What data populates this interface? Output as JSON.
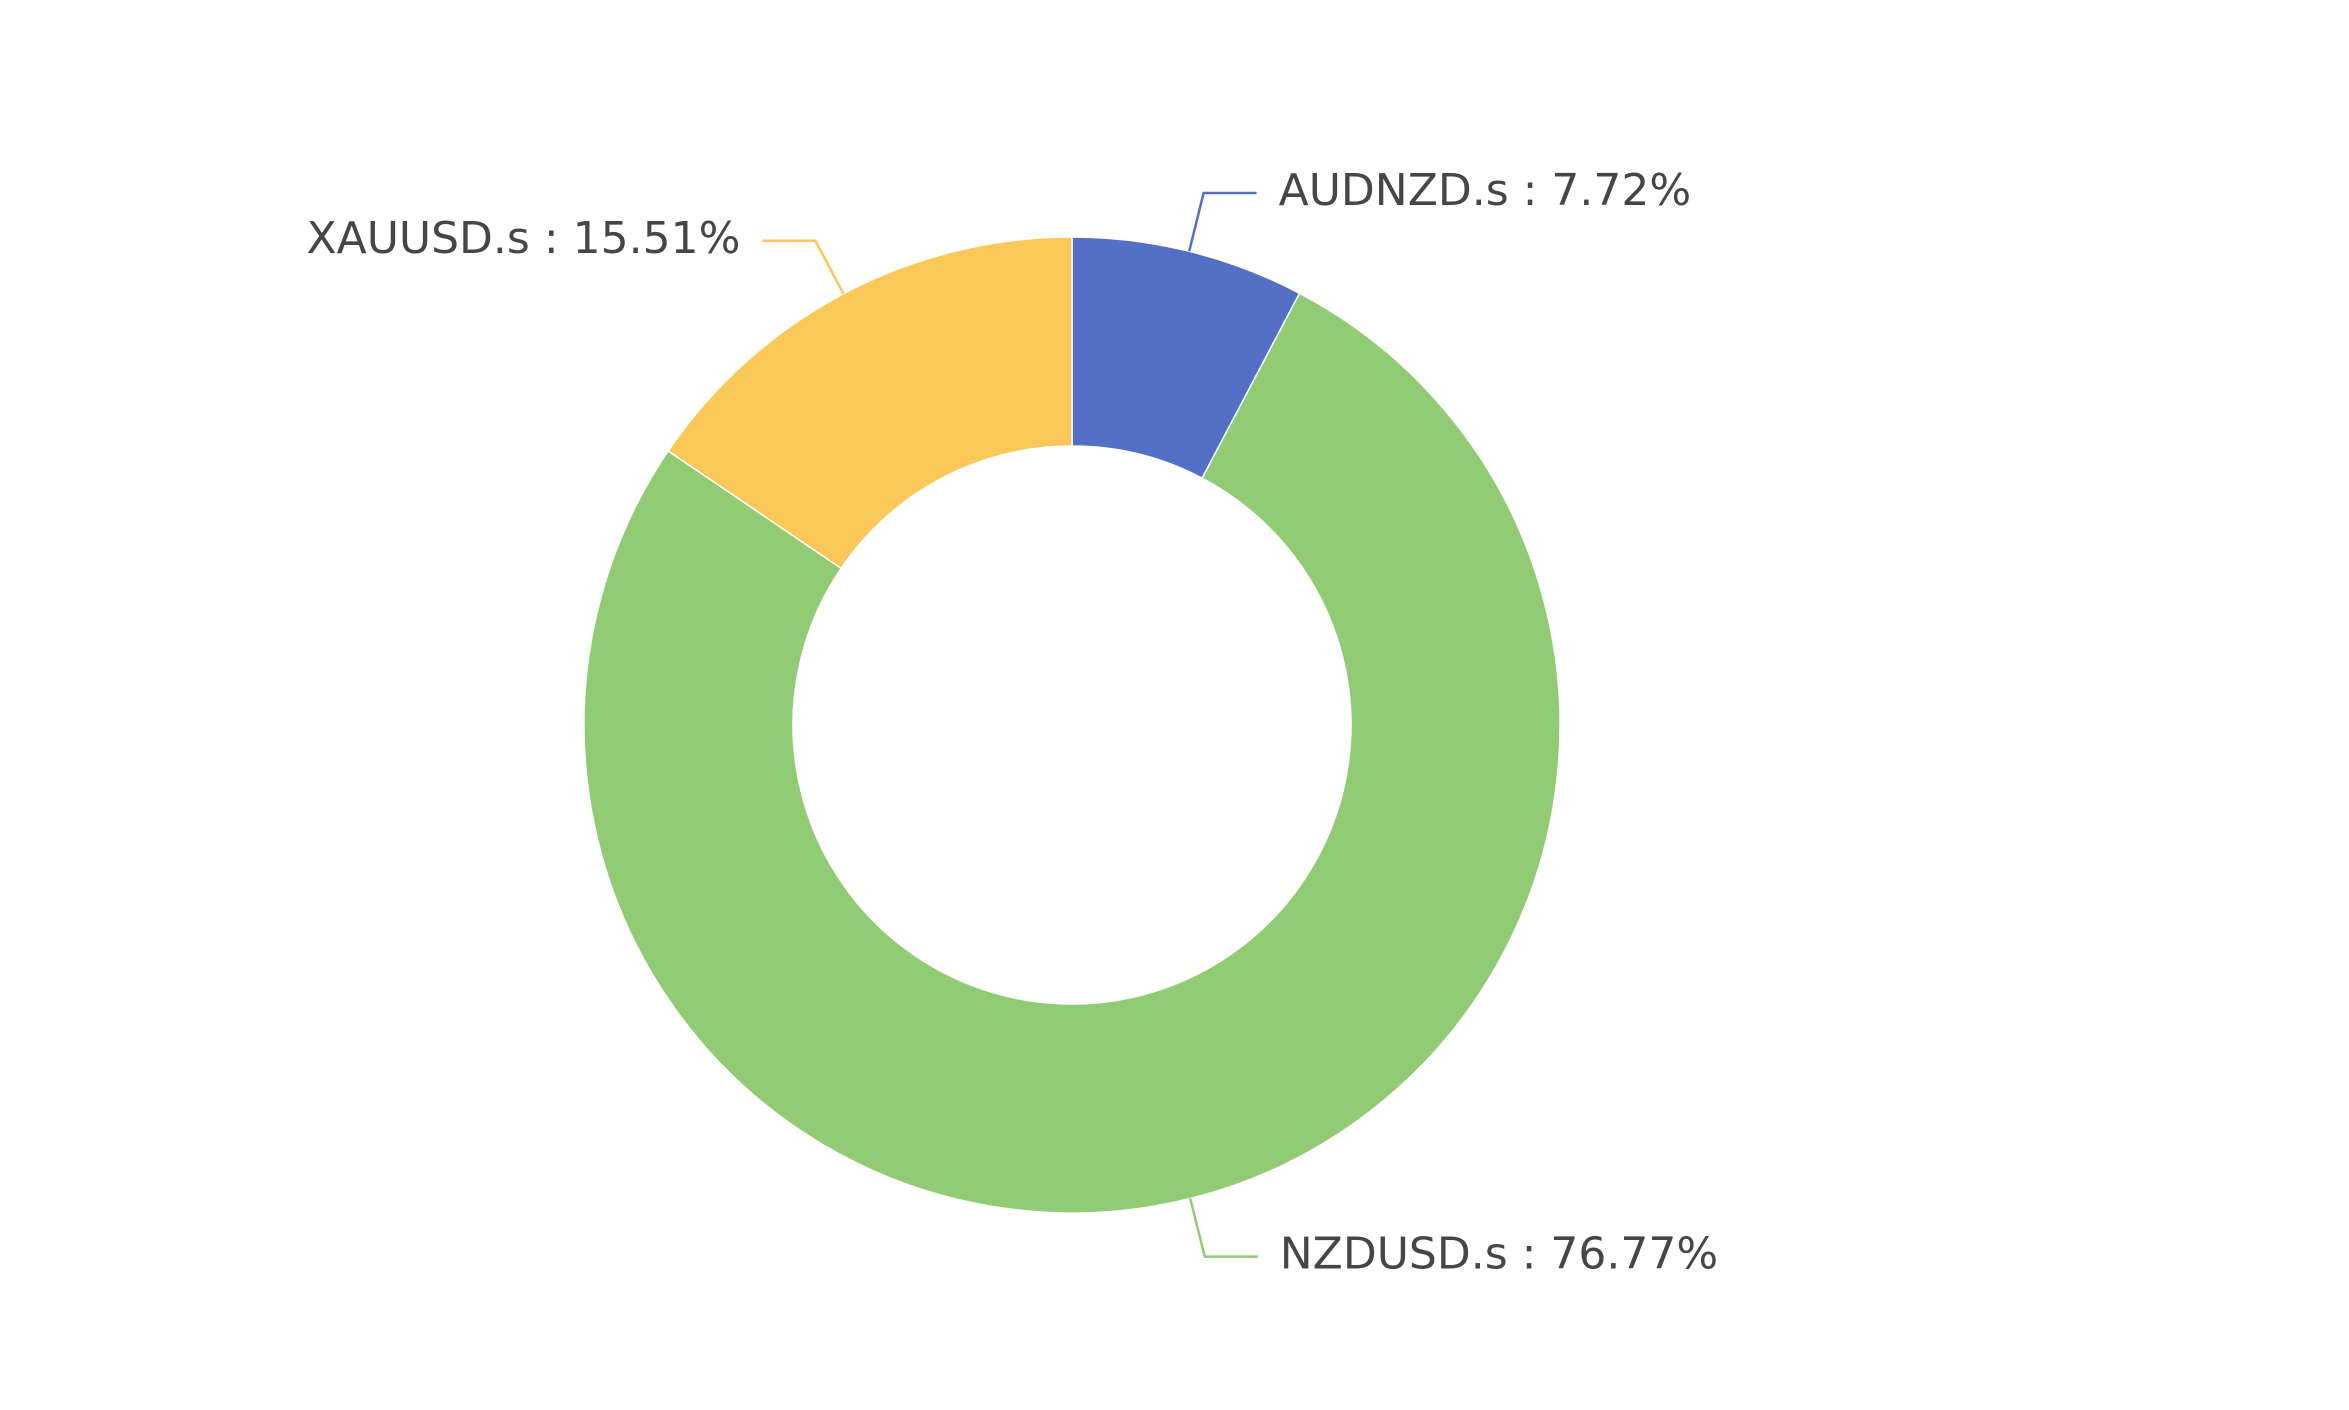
{
  "chart_data": {
    "type": "pie",
    "values": [
      7.72,
      76.77,
      15.51
    ],
    "value_labels": [
      "AUDNZD.s : 7.72%",
      "NZDUSD.s : 76.77%",
      "XAUUSD.s : 15.51%"
    ],
    "colors": [
      "#5470c6",
      "#91cc75",
      "#fac858"
    ]
  }
}
